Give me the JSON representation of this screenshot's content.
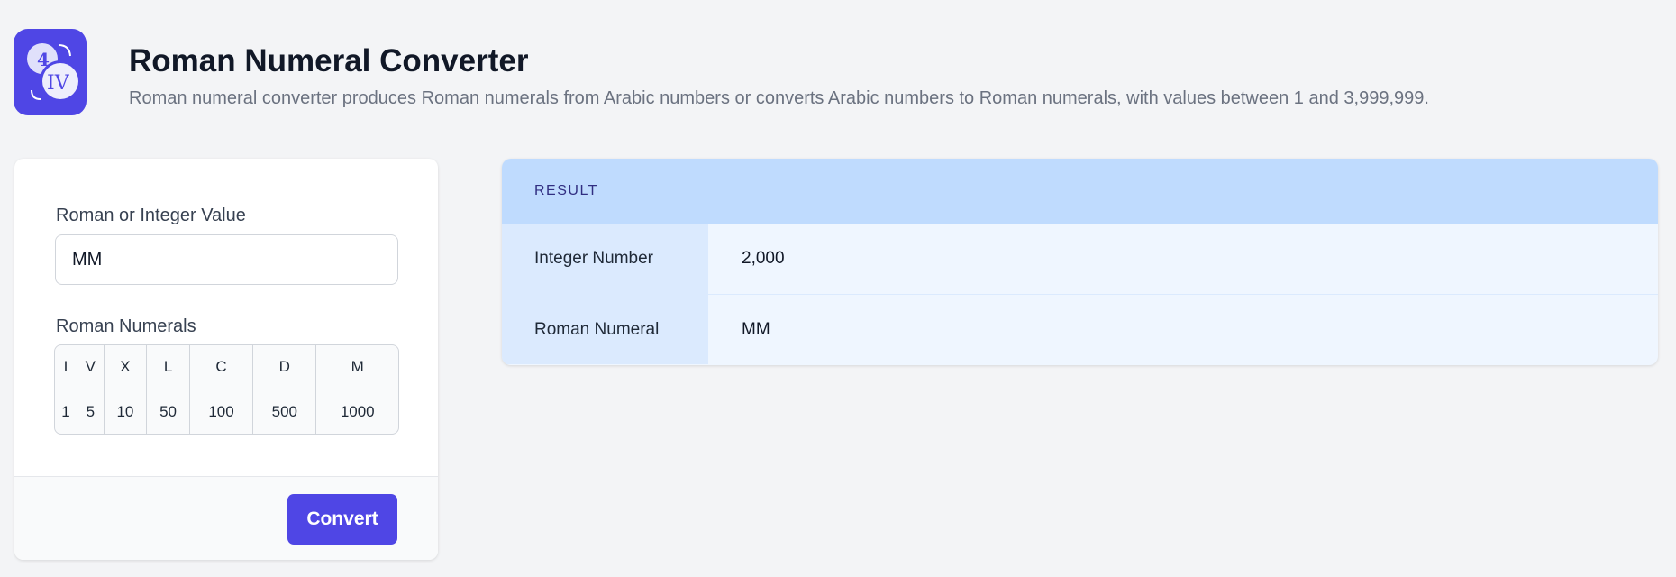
{
  "header": {
    "title": "Roman Numeral Converter",
    "subtitle": "Roman numeral converter produces Roman numerals from Arabic numbers or converts Arabic numbers to Roman numerals, with values between 1 and 3,999,999.",
    "logo_text": [
      "4",
      "IV"
    ]
  },
  "form": {
    "input_label": "Roman or Integer Value",
    "input_value": "MM",
    "table_label": "Roman Numerals",
    "numerals": [
      "I",
      "V",
      "X",
      "L",
      "C",
      "D",
      "M"
    ],
    "values": [
      "1",
      "5",
      "10",
      "50",
      "100",
      "500",
      "1000"
    ],
    "convert_label": "Convert"
  },
  "result": {
    "title": "RESULT",
    "rows": [
      {
        "label": "Integer Number",
        "value": "2,000"
      },
      {
        "label": "Roman Numeral",
        "value": "MM"
      }
    ]
  },
  "colors": {
    "accent": "#4f46e5",
    "result_header": "#bfdbfe"
  }
}
